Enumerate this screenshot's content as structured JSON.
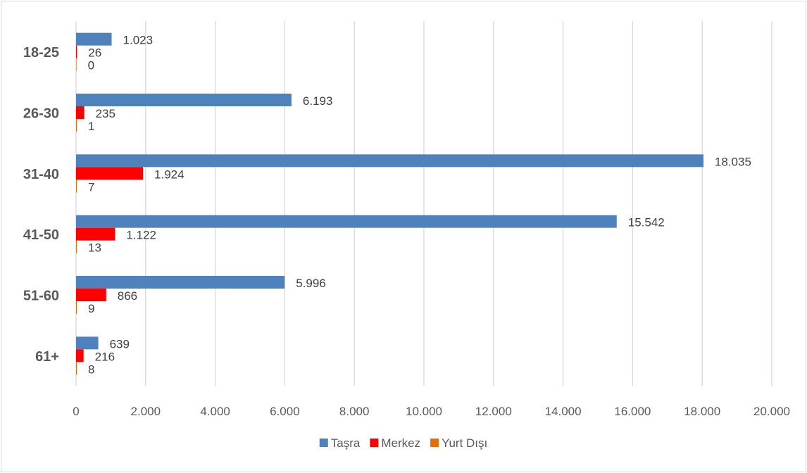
{
  "chart_data": {
    "type": "bar",
    "orientation": "horizontal",
    "categories": [
      "18-25",
      "26-30",
      "31-40",
      "41-50",
      "51-60",
      "61+"
    ],
    "series": [
      {
        "name": "Taşra",
        "color": "#4f81bd",
        "values": [
          1023,
          6193,
          18035,
          15542,
          5996,
          639
        ],
        "labels": [
          "1.023",
          "6.193",
          "18.035",
          "15.542",
          "5.996",
          "639"
        ]
      },
      {
        "name": "Merkez",
        "color": "#ff0000",
        "values": [
          26,
          235,
          1924,
          1122,
          866,
          216
        ],
        "labels": [
          "26",
          "235",
          "1.924",
          "1.122",
          "866",
          "216"
        ]
      },
      {
        "name": "Yurt Dışı",
        "color": "#e46c0a",
        "values": [
          0,
          1,
          7,
          13,
          9,
          8
        ],
        "labels": [
          "0",
          "1",
          "7",
          "13",
          "9",
          "8"
        ]
      }
    ],
    "xlim": [
      0,
      20000
    ],
    "x_ticks": [
      0,
      2000,
      4000,
      6000,
      8000,
      10000,
      12000,
      14000,
      16000,
      18000,
      20000
    ],
    "x_tick_labels": [
      "0",
      "2.000",
      "4.000",
      "6.000",
      "8.000",
      "10.000",
      "12.000",
      "14.000",
      "16.000",
      "18.000",
      "20.000"
    ],
    "title": "",
    "xlabel": "",
    "ylabel": "",
    "grid": "vertical",
    "legend_position": "bottom"
  }
}
